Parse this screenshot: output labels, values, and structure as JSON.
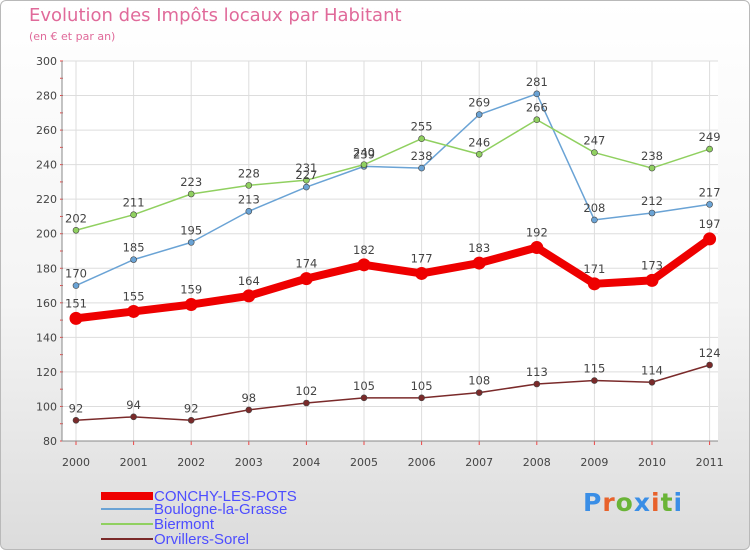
{
  "title": "Evolution des Impôts locaux par Habitant",
  "subtitle": "(en € et par an)",
  "logo_text": "Proxiti",
  "logo_colors": [
    "#3a8ee6",
    "#e8622b",
    "#6ab437",
    "#3a8ee6",
    "#e8622b",
    "#6ab437",
    "#3a8ee6"
  ],
  "chart_data": {
    "type": "line",
    "x": [
      "2000",
      "2001",
      "2002",
      "2003",
      "2004",
      "2005",
      "2006",
      "2007",
      "2008",
      "2009",
      "2010",
      "2011"
    ],
    "ylim": [
      80,
      300
    ],
    "yticks": [
      80,
      100,
      120,
      140,
      160,
      180,
      200,
      220,
      240,
      260,
      280,
      300
    ],
    "grid": true,
    "legend_position": "bottom-left",
    "series": [
      {
        "name": "CONCHY-LES-POTS",
        "color": "#ee0000",
        "values": [
          151,
          155,
          159,
          164,
          174,
          182,
          177,
          183,
          192,
          171,
          173,
          197
        ]
      },
      {
        "name": "Boulogne-la-Grasse",
        "color": "#6aa3d5",
        "values": [
          170,
          185,
          195,
          213,
          227,
          239,
          238,
          269,
          281,
          208,
          212,
          217
        ]
      },
      {
        "name": "Biermont",
        "color": "#90d060",
        "values": [
          202,
          211,
          223,
          228,
          231,
          240,
          255,
          246,
          266,
          247,
          238,
          249
        ]
      },
      {
        "name": "Orvillers-Sorel",
        "color": "#7a2a2a",
        "values": [
          92,
          94,
          92,
          98,
          102,
          105,
          105,
          108,
          113,
          115,
          114,
          124
        ]
      }
    ]
  }
}
